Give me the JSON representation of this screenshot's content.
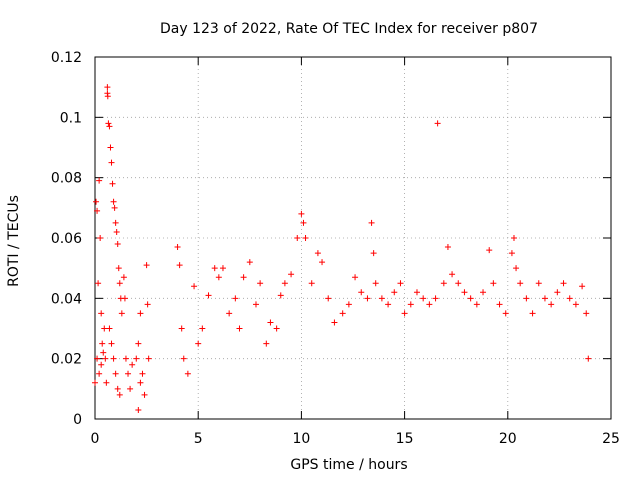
{
  "chart_data": {
    "type": "scatter",
    "title": "Day 123 of 2022, Rate Of TEC Index for receiver p807",
    "xlabel": "GPS time / hours",
    "ylabel": "ROTI / TECUs",
    "xlim": [
      0,
      25
    ],
    "ylim": [
      0,
      0.12
    ],
    "x_ticks": [
      0,
      5,
      10,
      15,
      20,
      25
    ],
    "x_tick_labels": [
      "0",
      "5",
      "10",
      "15",
      "20",
      "25"
    ],
    "y_ticks": [
      0,
      0.02,
      0.04,
      0.06,
      0.08,
      0.1,
      0.12
    ],
    "y_tick_labels": [
      "0",
      "0.02",
      "0.04",
      "0.06",
      "0.08",
      "0.1",
      "0.12"
    ],
    "grid": true,
    "grid_style": "dotted",
    "legend": "none",
    "marker": "plus",
    "series": [
      {
        "color": "#ff0000",
        "points": [
          [
            0.0,
            0.012
          ],
          [
            0.05,
            0.072
          ],
          [
            0.1,
            0.069
          ],
          [
            0.15,
            0.045
          ],
          [
            0.2,
            0.079
          ],
          [
            0.25,
            0.06
          ],
          [
            0.3,
            0.035
          ],
          [
            0.35,
            0.025
          ],
          [
            0.1,
            0.02
          ],
          [
            0.2,
            0.015
          ],
          [
            0.3,
            0.018
          ],
          [
            0.4,
            0.022
          ],
          [
            0.45,
            0.03
          ],
          [
            0.5,
            0.02
          ],
          [
            0.55,
            0.012
          ],
          [
            0.6,
            0.108
          ],
          [
            0.6,
            0.11
          ],
          [
            0.62,
            0.107
          ],
          [
            0.65,
            0.098
          ],
          [
            0.7,
            0.097
          ],
          [
            0.75,
            0.09
          ],
          [
            0.8,
            0.085
          ],
          [
            0.85,
            0.078
          ],
          [
            0.9,
            0.072
          ],
          [
            0.95,
            0.07
          ],
          [
            1.0,
            0.065
          ],
          [
            1.05,
            0.062
          ],
          [
            1.1,
            0.058
          ],
          [
            1.15,
            0.05
          ],
          [
            1.2,
            0.045
          ],
          [
            1.25,
            0.04
          ],
          [
            1.3,
            0.035
          ],
          [
            0.7,
            0.03
          ],
          [
            0.8,
            0.025
          ],
          [
            0.9,
            0.02
          ],
          [
            1.0,
            0.015
          ],
          [
            1.1,
            0.01
          ],
          [
            1.2,
            0.008
          ],
          [
            1.4,
            0.047
          ],
          [
            1.45,
            0.04
          ],
          [
            1.5,
            0.02
          ],
          [
            1.6,
            0.015
          ],
          [
            1.7,
            0.01
          ],
          [
            1.8,
            0.018
          ],
          [
            2.0,
            0.02
          ],
          [
            2.1,
            0.025
          ],
          [
            2.2,
            0.035
          ],
          [
            2.3,
            0.015
          ],
          [
            2.4,
            0.008
          ],
          [
            2.5,
            0.051
          ],
          [
            2.55,
            0.038
          ],
          [
            2.6,
            0.02
          ],
          [
            2.1,
            0.003
          ],
          [
            2.2,
            0.012
          ],
          [
            4.0,
            0.057
          ],
          [
            4.1,
            0.051
          ],
          [
            4.2,
            0.03
          ],
          [
            4.3,
            0.02
          ],
          [
            4.5,
            0.015
          ],
          [
            4.8,
            0.044
          ],
          [
            5.0,
            0.025
          ],
          [
            5.2,
            0.03
          ],
          [
            5.5,
            0.041
          ],
          [
            5.8,
            0.05
          ],
          [
            6.0,
            0.047
          ],
          [
            6.2,
            0.05
          ],
          [
            6.5,
            0.035
          ],
          [
            6.8,
            0.04
          ],
          [
            7.0,
            0.03
          ],
          [
            7.2,
            0.047
          ],
          [
            7.5,
            0.052
          ],
          [
            7.8,
            0.038
          ],
          [
            8.0,
            0.045
          ],
          [
            8.3,
            0.025
          ],
          [
            8.5,
            0.032
          ],
          [
            8.8,
            0.03
          ],
          [
            9.0,
            0.041
          ],
          [
            9.2,
            0.045
          ],
          [
            9.5,
            0.048
          ],
          [
            9.8,
            0.06
          ],
          [
            10.0,
            0.068
          ],
          [
            10.1,
            0.065
          ],
          [
            10.2,
            0.06
          ],
          [
            10.5,
            0.045
          ],
          [
            10.8,
            0.055
          ],
          [
            11.0,
            0.052
          ],
          [
            11.3,
            0.04
          ],
          [
            11.6,
            0.032
          ],
          [
            12.0,
            0.035
          ],
          [
            12.3,
            0.038
          ],
          [
            12.6,
            0.047
          ],
          [
            12.9,
            0.042
          ],
          [
            13.2,
            0.04
          ],
          [
            13.4,
            0.065
          ],
          [
            13.5,
            0.055
          ],
          [
            13.6,
            0.045
          ],
          [
            13.9,
            0.04
          ],
          [
            14.2,
            0.038
          ],
          [
            14.5,
            0.042
          ],
          [
            14.8,
            0.045
          ],
          [
            15.0,
            0.035
          ],
          [
            15.3,
            0.038
          ],
          [
            15.6,
            0.042
          ],
          [
            15.9,
            0.04
          ],
          [
            16.2,
            0.038
          ],
          [
            16.5,
            0.04
          ],
          [
            16.6,
            0.098
          ],
          [
            16.9,
            0.045
          ],
          [
            17.1,
            0.057
          ],
          [
            17.3,
            0.048
          ],
          [
            17.6,
            0.045
          ],
          [
            17.9,
            0.042
          ],
          [
            18.2,
            0.04
          ],
          [
            18.5,
            0.038
          ],
          [
            18.8,
            0.042
          ],
          [
            19.1,
            0.056
          ],
          [
            19.3,
            0.045
          ],
          [
            19.6,
            0.038
          ],
          [
            19.9,
            0.035
          ],
          [
            20.2,
            0.055
          ],
          [
            20.3,
            0.06
          ],
          [
            20.4,
            0.05
          ],
          [
            20.6,
            0.045
          ],
          [
            20.9,
            0.04
          ],
          [
            21.2,
            0.035
          ],
          [
            21.5,
            0.045
          ],
          [
            21.8,
            0.04
          ],
          [
            22.1,
            0.038
          ],
          [
            22.4,
            0.042
          ],
          [
            22.7,
            0.045
          ],
          [
            23.0,
            0.04
          ],
          [
            23.3,
            0.038
          ],
          [
            23.6,
            0.044
          ],
          [
            23.8,
            0.035
          ],
          [
            23.9,
            0.02
          ]
        ]
      }
    ]
  }
}
